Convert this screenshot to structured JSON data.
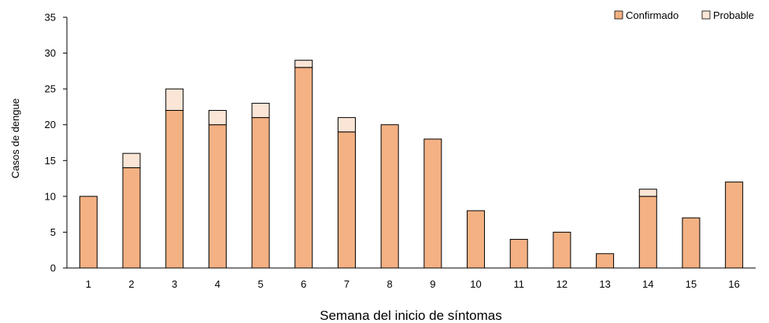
{
  "chart_data": {
    "type": "bar",
    "stacked": true,
    "categories": [
      "1",
      "2",
      "3",
      "4",
      "5",
      "6",
      "7",
      "8",
      "9",
      "10",
      "11",
      "12",
      "13",
      "14",
      "15",
      "16"
    ],
    "series": [
      {
        "name": "Confirmado",
        "color": "#f4b183",
        "values": [
          10,
          14,
          22,
          20,
          21,
          28,
          19,
          20,
          18,
          8,
          4,
          5,
          2,
          10,
          7,
          12
        ]
      },
      {
        "name": "Probable",
        "color": "#fbe5d6",
        "values": [
          0,
          2,
          3,
          2,
          2,
          1,
          2,
          0,
          0,
          0,
          0,
          0,
          0,
          1,
          0,
          0
        ]
      }
    ],
    "xlabel": "Semana del inicio de síntomas",
    "ylabel": "Casos de dengue",
    "ylim": [
      0,
      35
    ],
    "yticks": [
      0,
      5,
      10,
      15,
      20,
      25,
      30,
      35
    ],
    "grid": false,
    "legend_position": "top-right"
  }
}
